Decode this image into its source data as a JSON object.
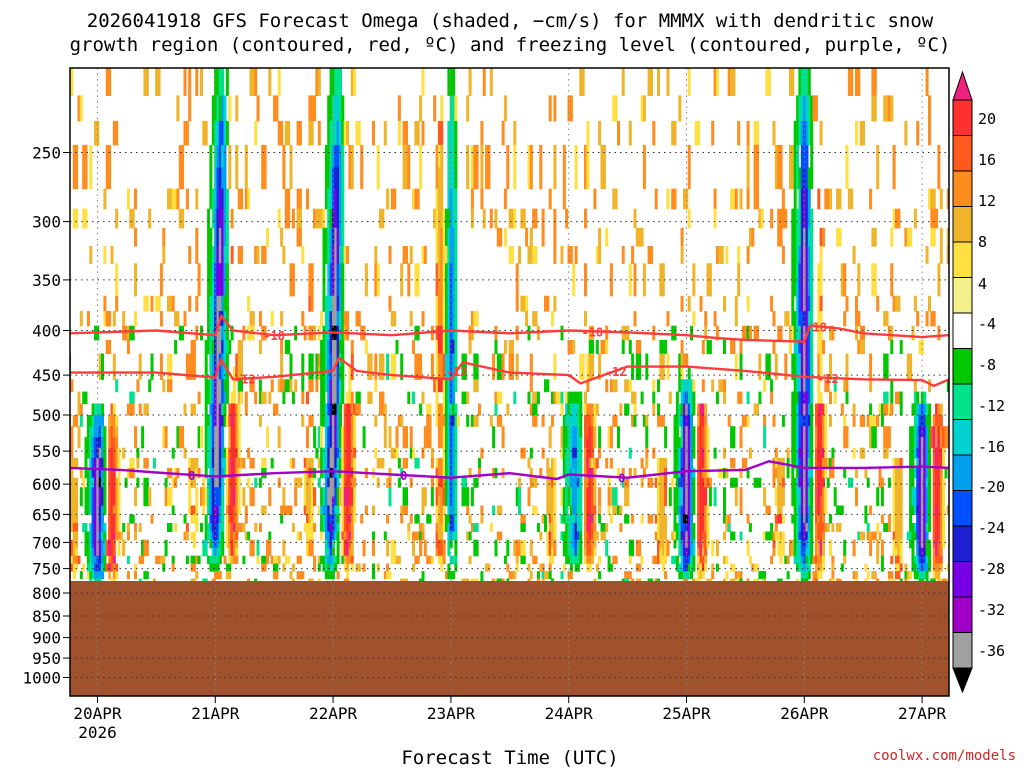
{
  "header": {
    "title_line1": "2026041918 GFS Forecast Omega (shaded, −cm/s) for MMMX with dendritic snow",
    "title_line2": "growth region (contoured, red, ºC) and freezing level (contoured, purple, ºC)"
  },
  "credit": "coolwx.com/models",
  "chart_data": {
    "type": "heatmap",
    "xlabel": "Forecast Time (UTC)",
    "x_range_days": [
      0,
      7.5
    ],
    "x_ticks": [
      {
        "day": 0,
        "label": "20APR",
        "sub": "2026"
      },
      {
        "day": 1,
        "label": "21APR"
      },
      {
        "day": 2,
        "label": "22APR"
      },
      {
        "day": 3,
        "label": "23APR"
      },
      {
        "day": 4,
        "label": "24APR"
      },
      {
        "day": 5,
        "label": "25APR"
      },
      {
        "day": 6,
        "label": "26APR"
      },
      {
        "day": 7,
        "label": "27APR"
      }
    ],
    "y_axis": {
      "scale": "pressure-hPa",
      "range": [
        1050,
        200
      ],
      "inverted": true,
      "ticks": [
        250,
        300,
        350,
        400,
        450,
        500,
        550,
        600,
        650,
        700,
        750,
        800,
        850,
        900,
        950,
        1000
      ]
    },
    "surface_pressure": 775,
    "grid": true,
    "colorbar": {
      "ticks": [
        20,
        16,
        12,
        8,
        4,
        -4,
        -8,
        -12,
        -16,
        -20,
        -24,
        -28,
        -32,
        -36
      ],
      "colors": [
        "#ee2080",
        "#ff3030",
        "#ff5a1e",
        "#ff8c1e",
        "#f0b42a",
        "#ffe040",
        "#f4f08c",
        "#ffffff",
        "#00c800",
        "#00e28c",
        "#00d2d2",
        "#00a0f0",
        "#0050ff",
        "#1e1ed2",
        "#7800e6",
        "#a000c8",
        "#a0a0a0",
        "#000000"
      ]
    },
    "contours": [
      {
        "value": -18,
        "label": "-18",
        "color": "#ff3c3c",
        "points": [
          [
            0,
            403
          ],
          [
            0.5,
            400
          ],
          [
            1,
            405
          ],
          [
            1.05,
            385
          ],
          [
            1.15,
            400
          ],
          [
            1.5,
            405
          ],
          [
            2,
            402
          ],
          [
            2.5,
            405
          ],
          [
            3,
            400
          ],
          [
            3.5,
            403
          ],
          [
            4,
            400
          ],
          [
            4.5,
            402
          ],
          [
            5,
            405
          ],
          [
            5.25,
            408
          ],
          [
            5.5,
            410
          ],
          [
            6,
            412
          ],
          [
            6.05,
            395
          ],
          [
            6.3,
            398
          ],
          [
            6.5,
            403
          ],
          [
            7,
            407
          ],
          [
            7.5,
            405
          ]
        ],
        "label_days": [
          1.5,
          4.2,
          6.1
        ]
      },
      {
        "value": -12,
        "label": "-12",
        "color": "#ff3c3c",
        "points": [
          [
            0,
            447
          ],
          [
            0.5,
            447
          ],
          [
            1,
            453
          ],
          [
            1.05,
            432
          ],
          [
            1.15,
            455
          ],
          [
            1.5,
            452
          ],
          [
            2,
            445
          ],
          [
            2.05,
            430
          ],
          [
            2.2,
            445
          ],
          [
            2.5,
            450
          ],
          [
            3,
            455
          ],
          [
            3.1,
            435
          ],
          [
            3.5,
            447
          ],
          [
            4,
            450
          ],
          [
            4.1,
            460
          ],
          [
            4.5,
            440
          ],
          [
            5,
            440
          ],
          [
            5.5,
            445
          ],
          [
            6,
            452
          ],
          [
            6.5,
            455
          ],
          [
            7,
            456
          ],
          [
            7.1,
            463
          ],
          [
            7.5,
            455
          ]
        ],
        "label_days": [
          1.25,
          3.05,
          4.4,
          6.2
        ]
      },
      {
        "value": 0,
        "label": "0",
        "color": "#a000c8",
        "points": [
          [
            0,
            575
          ],
          [
            0.2,
            578
          ],
          [
            0.5,
            582
          ],
          [
            1,
            588
          ],
          [
            1.5,
            583
          ],
          [
            2,
            580
          ],
          [
            2.5,
            585
          ],
          [
            3,
            590
          ],
          [
            3.5,
            583
          ],
          [
            3.9,
            592
          ],
          [
            4,
            585
          ],
          [
            4.5,
            590
          ],
          [
            5,
            580
          ],
          [
            5.5,
            578
          ],
          [
            5.7,
            565
          ],
          [
            6,
            575
          ],
          [
            6.5,
            575
          ],
          [
            7,
            573
          ],
          [
            7.5,
            575
          ]
        ],
        "label_days": [
          0.8,
          2.6,
          4.45
        ]
      }
    ],
    "omega_features": [
      {
        "day": 0.0,
        "p_top": 500,
        "p_bot": 770,
        "core": -36,
        "pattern": "upward"
      },
      {
        "day": 1.02,
        "p_top": 200,
        "p_bot": 740,
        "core": -36,
        "pattern": "upward"
      },
      {
        "day": 2.0,
        "p_top": 200,
        "p_bot": 760,
        "core": -36,
        "pattern": "upward"
      },
      {
        "day": 3.0,
        "p_top": 200,
        "p_bot": 770,
        "core": -16,
        "pattern": "mixed"
      },
      {
        "day": 4.05,
        "p_top": 480,
        "p_bot": 740,
        "core": -20,
        "pattern": "upward"
      },
      {
        "day": 5.0,
        "p_top": 460,
        "p_bot": 760,
        "core": -36,
        "pattern": "upward"
      },
      {
        "day": 6.0,
        "p_top": 200,
        "p_bot": 770,
        "core": -36,
        "pattern": "upward"
      },
      {
        "day": 7.0,
        "p_top": 480,
        "p_bot": 760,
        "core": -36,
        "pattern": "upward"
      }
    ]
  }
}
